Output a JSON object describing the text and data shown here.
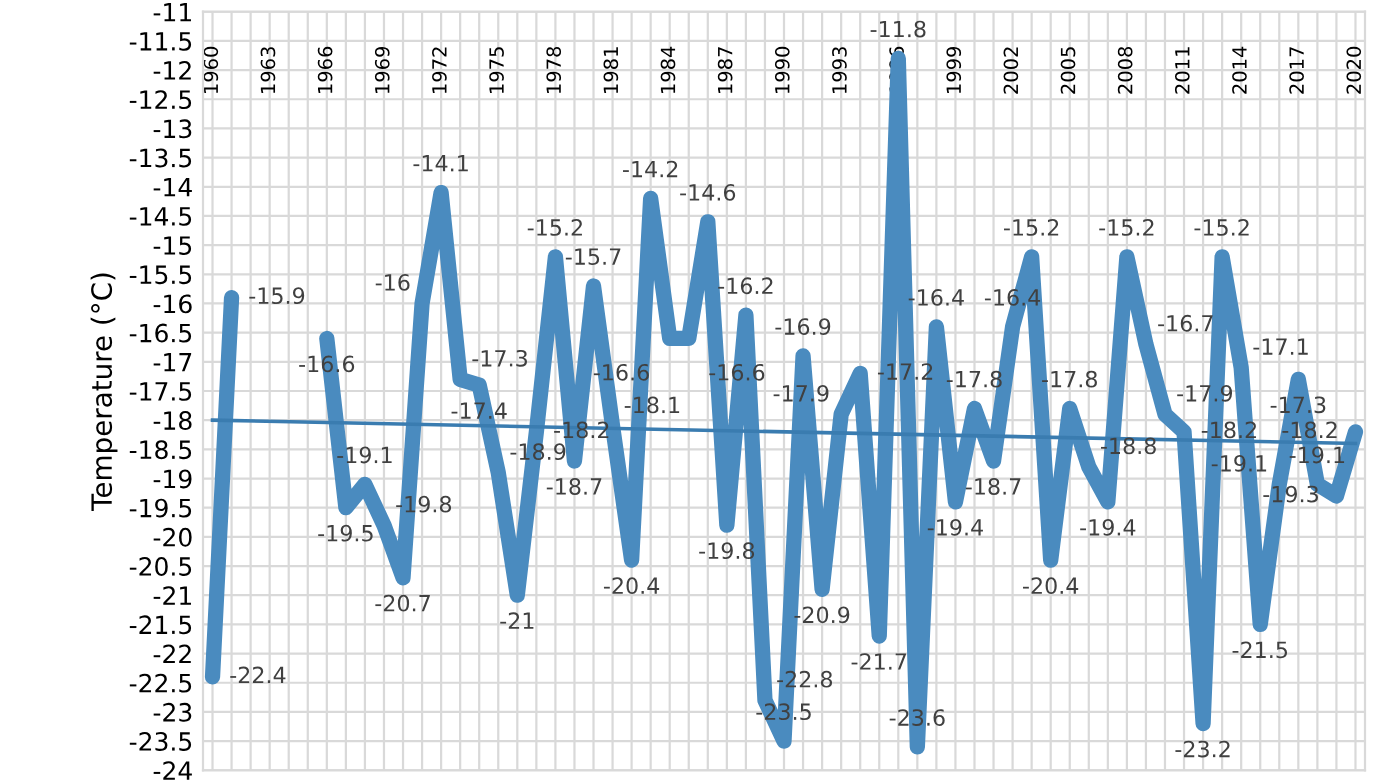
{
  "chart_data": {
    "type": "line",
    "ylabel": "Temperature (°C)",
    "x": [
      1960,
      1961,
      1962,
      1963,
      1964,
      1965,
      1966,
      1967,
      1968,
      1969,
      1970,
      1971,
      1972,
      1973,
      1974,
      1975,
      1976,
      1977,
      1978,
      1979,
      1980,
      1981,
      1982,
      1983,
      1984,
      1985,
      1986,
      1987,
      1988,
      1989,
      1990,
      1991,
      1992,
      1993,
      1994,
      1995,
      1996,
      1997,
      1998,
      1999,
      2000,
      2001,
      2002,
      2003,
      2004,
      2005,
      2006,
      2007,
      2008,
      2009,
      2010,
      2011,
      2012,
      2013,
      2014,
      2015,
      2016,
      2017,
      2018,
      2019,
      2020
    ],
    "series": [
      {
        "color": "#4a8bbf",
        "data_labels": true,
        "values": [
          -22.4,
          -15.9,
          null,
          null,
          null,
          null,
          -16.6,
          -19.5,
          -19.1,
          -19.8,
          -20.7,
          -16,
          -14.1,
          -17.3,
          -17.4,
          -18.9,
          -21,
          -18.2,
          -15.2,
          -18.7,
          -15.7,
          -18.1,
          -20.4,
          -14.2,
          -16.6,
          -16.6,
          -14.6,
          -19.8,
          -16.2,
          -22.8,
          -23.5,
          -16.9,
          -20.9,
          -17.9,
          -17.2,
          -21.7,
          -11.8,
          -23.6,
          -16.4,
          -19.4,
          -17.8,
          -18.7,
          -16.4,
          -15.2,
          -20.4,
          -17.8,
          -18.8,
          -19.4,
          -15.2,
          -16.7,
          -17.9,
          -18.2,
          -23.2,
          -15.2,
          -17.1,
          -21.5,
          -19.1,
          -17.3,
          -19.1,
          -19.3,
          -18.2
        ]
      },
      {
        "type": "line",
        "color": "#3a7cb0",
        "x": [
          1960,
          2020
        ],
        "values": [
          -18.0,
          -18.4
        ]
      }
    ],
    "xlim": [
      1959.5,
      2020.5
    ],
    "xticks": [
      1960,
      {
        "value": 1961,
        "label": null
      },
      {
        "value": 1962,
        "label": null
      },
      1963,
      {
        "value": 1964,
        "label": null
      },
      {
        "value": 1965,
        "label": null
      },
      1966,
      {
        "value": 1967,
        "label": null
      },
      {
        "value": 1968,
        "label": null
      },
      1969,
      {
        "value": 1970,
        "label": null
      },
      {
        "value": 1971,
        "label": null
      },
      1972,
      {
        "value": 1973,
        "label": null
      },
      {
        "value": 1974,
        "label": null
      },
      1975,
      {
        "value": 1976,
        "label": null
      },
      {
        "value": 1977,
        "label": null
      },
      1978,
      {
        "value": 1979,
        "label": null
      },
      {
        "value": 1980,
        "label": null
      },
      1981,
      {
        "value": 1982,
        "label": null
      },
      {
        "value": 1983,
        "label": null
      },
      1984,
      {
        "value": 1985,
        "label": null
      },
      {
        "value": 1986,
        "label": null
      },
      1987,
      {
        "value": 1988,
        "label": null
      },
      {
        "value": 1989,
        "label": null
      },
      1990,
      {
        "value": 1991,
        "label": null
      },
      {
        "value": 1992,
        "label": null
      },
      1993,
      {
        "value": 1994,
        "label": null
      },
      {
        "value": 1995,
        "label": null
      },
      1996,
      {
        "value": 1997,
        "label": null
      },
      {
        "value": 1998,
        "label": null
      },
      1999,
      {
        "value": 2000,
        "label": null
      },
      {
        "value": 2001,
        "label": null
      },
      2002,
      {
        "value": 2003,
        "label": null
      },
      {
        "value": 2004,
        "label": null
      },
      2005,
      {
        "value": 2006,
        "label": null
      },
      {
        "value": 2007,
        "label": null
      },
      2008,
      {
        "value": 2009,
        "label": null
      },
      {
        "value": 2010,
        "label": null
      },
      2011,
      {
        "value": 2012,
        "label": null
      },
      {
        "value": 2013,
        "label": null
      },
      2014,
      {
        "value": 2015,
        "label": null
      },
      {
        "value": 2016,
        "label": null
      },
      2017,
      {
        "value": 2018,
        "label": null
      },
      {
        "value": 2019,
        "label": null
      },
      2020
    ],
    "ylim": [
      -24,
      -11
    ],
    "yticks": [
      -24,
      -23.5,
      -23,
      -22.5,
      -22,
      -21.5,
      -21,
      -20.5,
      -20,
      -19.5,
      -19,
      -18.5,
      -18,
      -17.5,
      -17,
      -16.5,
      -16,
      -15.5,
      -15,
      -14.5,
      -14,
      -13.5,
      -13,
      -12.5,
      -12,
      -11.5,
      -11
    ],
    "grid": true,
    "legend": false,
    "marker": "none",
    "line_style": "solid"
  }
}
